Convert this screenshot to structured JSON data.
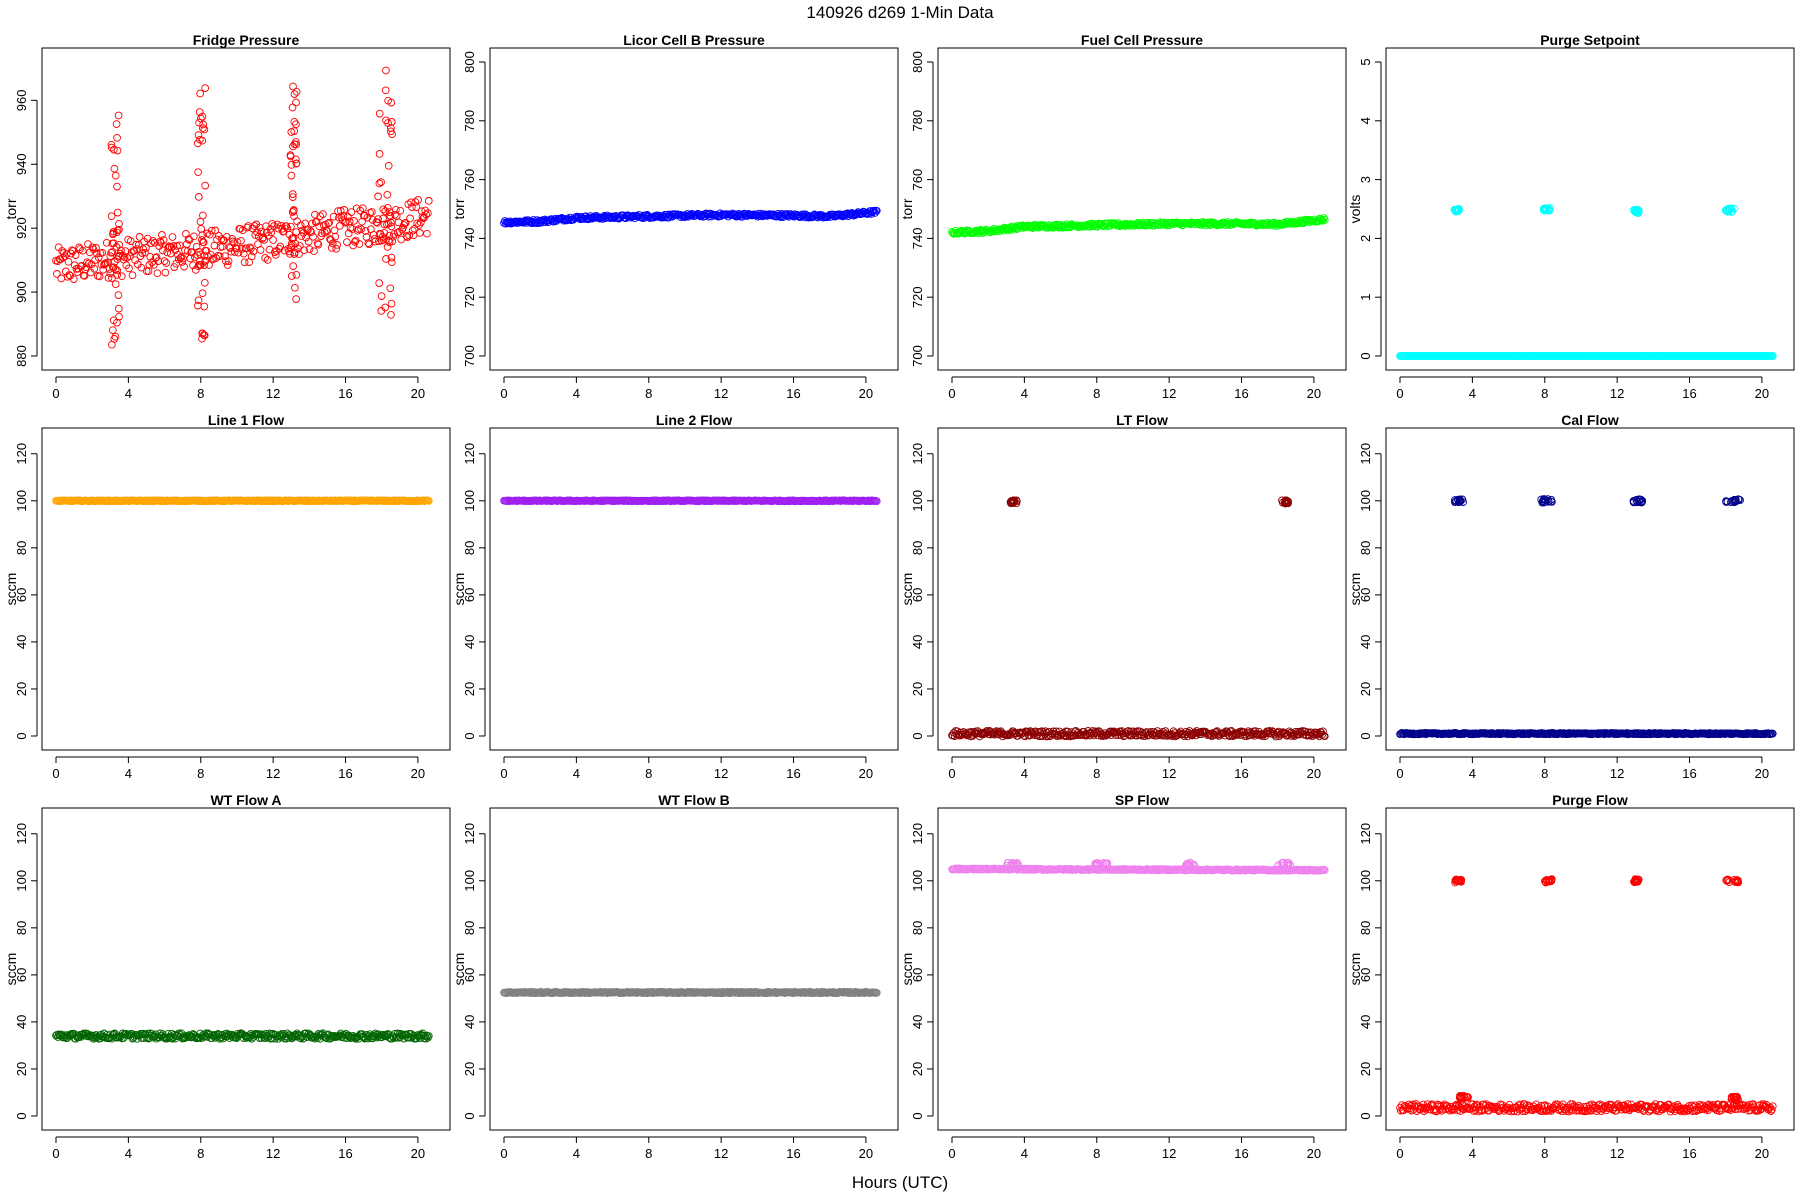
{
  "figure": {
    "title": "140926   d269   1-Min Data",
    "xlabel": "Hours (UTC)"
  },
  "chart_data": [
    {
      "type": "scatter",
      "title": "Fridge Pressure",
      "ylabel": "torr",
      "color": "#ff0000",
      "xlim": [
        0,
        21
      ],
      "ylim": [
        880,
        972
      ],
      "xticks": [
        0,
        4,
        8,
        12,
        16,
        20
      ],
      "yticks": [
        880,
        900,
        920,
        940,
        960
      ],
      "grid": false,
      "series": [
        {
          "baseline": [
            [
              0,
              908
            ],
            [
              4,
              911
            ],
            [
              8,
              913
            ],
            [
              12,
              916
            ],
            [
              16,
              920
            ],
            [
              18,
              921
            ],
            [
              20.6,
              924
            ]
          ],
          "spread": 6,
          "excursions": [
            {
              "x": [
                3.0,
                3.5
              ],
              "y": [
                883,
                958
              ]
            },
            {
              "x": [
                7.8,
                8.3
              ],
              "y": [
                885,
                964
              ]
            },
            {
              "x": [
                12.9,
                13.3
              ],
              "y": [
                897,
                965
              ]
            },
            {
              "x": [
                17.8,
                18.6
              ],
              "y": [
                892,
                972
              ]
            }
          ]
        }
      ]
    },
    {
      "type": "scatter",
      "title": "Licor Cell B Pressure",
      "ylabel": "torr",
      "color": "#0000ff",
      "xlim": [
        0,
        21
      ],
      "ylim": [
        700,
        800
      ],
      "xticks": [
        0,
        4,
        8,
        12,
        16,
        20
      ],
      "yticks": [
        700,
        720,
        740,
        760,
        780,
        800
      ],
      "grid": false,
      "series": [
        {
          "baseline": [
            [
              0,
              745.5
            ],
            [
              2,
              745.8
            ],
            [
              4,
              747
            ],
            [
              8,
              747.5
            ],
            [
              12,
              748
            ],
            [
              16,
              747.8
            ],
            [
              18,
              747.5
            ],
            [
              20.6,
              749
            ]
          ],
          "spread": 0.6
        }
      ]
    },
    {
      "type": "scatter",
      "title": "Fuel Cell Pressure",
      "ylabel": "torr",
      "color": "#00ff00",
      "xlim": [
        0,
        21
      ],
      "ylim": [
        700,
        800
      ],
      "xticks": [
        0,
        4,
        8,
        12,
        16,
        20
      ],
      "yticks": [
        700,
        720,
        740,
        760,
        780,
        800
      ],
      "grid": false,
      "series": [
        {
          "baseline": [
            [
              0,
              742
            ],
            [
              2,
              742.5
            ],
            [
              4,
              744
            ],
            [
              8,
              744.5
            ],
            [
              12,
              745
            ],
            [
              16,
              745
            ],
            [
              18,
              744.8
            ],
            [
              20.6,
              746.5
            ]
          ],
          "spread": 0.6
        }
      ]
    },
    {
      "type": "scatter",
      "title": "Purge Setpoint",
      "ylabel": "volts",
      "color": "#00ffff",
      "xlim": [
        0,
        21
      ],
      "ylim": [
        0,
        5
      ],
      "xticks": [
        0,
        4,
        8,
        12,
        16,
        20
      ],
      "yticks": [
        0,
        1,
        2,
        3,
        4,
        5
      ],
      "grid": false,
      "series": [
        {
          "baseline": [
            [
              0,
              0
            ],
            [
              20.6,
              0
            ]
          ],
          "spread": 0,
          "clusters": [
            {
              "x": [
                3.0,
                3.3
              ],
              "y": 2.48
            },
            {
              "x": [
                7.9,
                8.3
              ],
              "y": 2.5
            },
            {
              "x": [
                12.9,
                13.2
              ],
              "y": 2.46
            },
            {
              "x": [
                18.0,
                18.6
              ],
              "y": 2.48
            }
          ]
        }
      ]
    },
    {
      "type": "scatter",
      "title": "Line 1 Flow",
      "ylabel": "sccm",
      "color": "#ffa500",
      "xlim": [
        0,
        21
      ],
      "ylim": [
        0,
        125
      ],
      "xticks": [
        0,
        4,
        8,
        12,
        16,
        20
      ],
      "yticks": [
        0,
        20,
        40,
        60,
        80,
        100,
        120
      ],
      "grid": false,
      "series": [
        {
          "baseline": [
            [
              0,
              100
            ],
            [
              20.6,
              100
            ]
          ],
          "spread": 0.2
        }
      ]
    },
    {
      "type": "scatter",
      "title": "Line 2 Flow",
      "ylabel": "sccm",
      "color": "#a020f0",
      "xlim": [
        0,
        21
      ],
      "ylim": [
        0,
        125
      ],
      "xticks": [
        0,
        4,
        8,
        12,
        16,
        20
      ],
      "yticks": [
        0,
        20,
        40,
        60,
        80,
        100,
        120
      ],
      "grid": false,
      "series": [
        {
          "baseline": [
            [
              0,
              100
            ],
            [
              20.6,
              100
            ]
          ],
          "spread": 0.2
        }
      ]
    },
    {
      "type": "scatter",
      "title": "LT Flow",
      "ylabel": "sccm",
      "color": "#8b0000",
      "xlim": [
        0,
        21
      ],
      "ylim": [
        0,
        125
      ],
      "xticks": [
        0,
        4,
        8,
        12,
        16,
        20
      ],
      "yticks": [
        0,
        20,
        40,
        60,
        80,
        100,
        120
      ],
      "grid": false,
      "series": [
        {
          "baseline": [
            [
              0,
              1
            ],
            [
              20.6,
              1
            ]
          ],
          "spread": 1.2,
          "clusters": [
            {
              "x": [
                3.2,
                3.6
              ],
              "y": 99.5
            },
            {
              "x": [
                18.2,
                18.6
              ],
              "y": 99.5
            }
          ]
        }
      ]
    },
    {
      "type": "scatter",
      "title": "Cal Flow",
      "ylabel": "sccm",
      "color": "#00008b",
      "xlim": [
        0,
        21
      ],
      "ylim": [
        0,
        125
      ],
      "xticks": [
        0,
        4,
        8,
        12,
        16,
        20
      ],
      "yticks": [
        0,
        20,
        40,
        60,
        80,
        100,
        120
      ],
      "grid": false,
      "series": [
        {
          "baseline": [
            [
              0,
              1
            ],
            [
              20.6,
              1
            ]
          ],
          "spread": 0.3,
          "clusters": [
            {
              "x": [
                3.0,
                3.5
              ],
              "y": 100
            },
            {
              "x": [
                7.8,
                8.4
              ],
              "y": 100
            },
            {
              "x": [
                12.9,
                13.4
              ],
              "y": 100
            },
            {
              "x": [
                18.0,
                18.8
              ],
              "y": 100
            }
          ]
        }
      ]
    },
    {
      "type": "scatter",
      "title": "WT Flow A",
      "ylabel": "sccm",
      "color": "#006400",
      "xlim": [
        0,
        21
      ],
      "ylim": [
        0,
        125
      ],
      "xticks": [
        0,
        4,
        8,
        12,
        16,
        20
      ],
      "yticks": [
        0,
        20,
        40,
        60,
        80,
        100,
        120
      ],
      "grid": false,
      "series": [
        {
          "baseline": [
            [
              0,
              34
            ],
            [
              20.6,
              34
            ]
          ],
          "spread": 1.2
        }
      ]
    },
    {
      "type": "scatter",
      "title": "WT Flow B",
      "ylabel": "sccm",
      "color": "#808080",
      "xlim": [
        0,
        21
      ],
      "ylim": [
        0,
        125
      ],
      "xticks": [
        0,
        4,
        8,
        12,
        16,
        20
      ],
      "yticks": [
        0,
        20,
        40,
        60,
        80,
        100,
        120
      ],
      "grid": false,
      "series": [
        {
          "baseline": [
            [
              0,
              52.5
            ],
            [
              20.6,
              52.5
            ]
          ],
          "spread": 0.3
        }
      ]
    },
    {
      "type": "scatter",
      "title": "SP Flow",
      "ylabel": "sccm",
      "color": "#ee82ee",
      "xlim": [
        0,
        21
      ],
      "ylim": [
        0,
        125
      ],
      "xticks": [
        0,
        4,
        8,
        12,
        16,
        20
      ],
      "yticks": [
        0,
        20,
        40,
        60,
        80,
        100,
        120
      ],
      "grid": false,
      "series": [
        {
          "baseline": [
            [
              0,
              105
            ],
            [
              20.6,
              104.5
            ]
          ],
          "spread": 0.3,
          "clusters": [
            {
              "x": [
                3.0,
                3.7
              ],
              "y": 107
            },
            {
              "x": [
                7.9,
                8.6
              ],
              "y": 107
            },
            {
              "x": [
                12.9,
                13.4
              ],
              "y": 107
            },
            {
              "x": [
                18.0,
                18.8
              ],
              "y": 107
            }
          ]
        }
      ]
    },
    {
      "type": "scatter",
      "title": "Purge Flow",
      "ylabel": "sccm",
      "color": "#ff0000",
      "xlim": [
        0,
        21
      ],
      "ylim": [
        0,
        125
      ],
      "xticks": [
        0,
        4,
        8,
        12,
        16,
        20
      ],
      "yticks": [
        0,
        20,
        40,
        60,
        80,
        100,
        120
      ],
      "grid": false,
      "series": [
        {
          "baseline": [
            [
              0,
              3.5
            ],
            [
              20.6,
              3.5
            ]
          ],
          "spread": 1.6,
          "clusters": [
            {
              "x": [
                3.0,
                3.4
              ],
              "y": 100
            },
            {
              "x": [
                7.9,
                8.4
              ],
              "y": 100
            },
            {
              "x": [
                12.9,
                13.2
              ],
              "y": 100
            },
            {
              "x": [
                18.0,
                18.7
              ],
              "y": 100
            },
            {
              "x": [
                3.3,
                3.8
              ],
              "y": 8
            },
            {
              "x": [
                18.3,
                18.7
              ],
              "y": 7.5
            }
          ]
        }
      ]
    }
  ]
}
